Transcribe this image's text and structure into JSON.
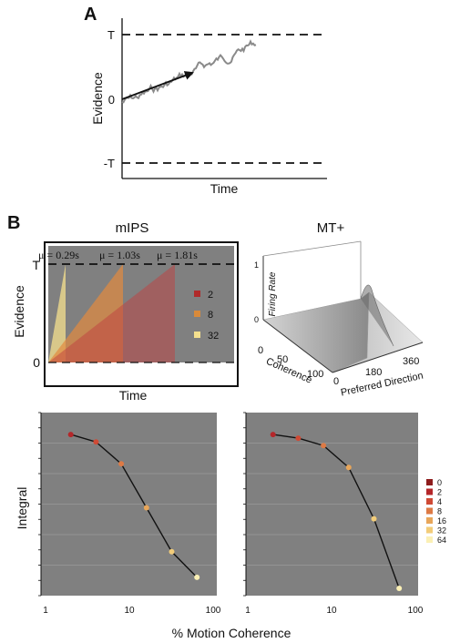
{
  "panelA": {
    "label": "A",
    "ylabel": "Evidence",
    "xlabel": "Time",
    "ticks": {
      "upper": "T",
      "zero": "0",
      "lower": "-T"
    },
    "walk_color": "#888888"
  },
  "panelB": {
    "label": "B",
    "mips": {
      "title": "mIPS",
      "ylabel": "Evidence",
      "xlabel": "Time",
      "ticks": {
        "upper": "T",
        "zero": "0"
      },
      "mu_labels": [
        "μ = 0.29s",
        "μ = 1.03s",
        "μ = 1.81s"
      ],
      "legend": [
        {
          "label": "2",
          "color": "#b02a2a"
        },
        {
          "label": "8",
          "color": "#d98a3a"
        },
        {
          "label": "32",
          "color": "#f5e08e"
        }
      ],
      "background": "#7f7f7f"
    },
    "mt": {
      "title": "MT+",
      "zlabel": "Firing Rate",
      "z_ticks": [
        "0",
        "1"
      ],
      "coherence_label": "Coherence",
      "coherence_ticks": [
        "0",
        "50",
        "100"
      ],
      "direction_label": "Preferred Direction",
      "direction_ticks": [
        "0",
        "180",
        "360"
      ]
    }
  },
  "bottom": {
    "ylabel": "Integral",
    "xlabel": "% Motion Coherence",
    "x_ticks": [
      "1",
      "10",
      "100"
    ],
    "background": "#808080",
    "legend": [
      {
        "label": "0",
        "color": "#8e1d1d"
      },
      {
        "label": "2",
        "color": "#b4272a"
      },
      {
        "label": "4",
        "color": "#cf4a35"
      },
      {
        "label": "8",
        "color": "#dd7a45"
      },
      {
        "label": "16",
        "color": "#e8a65a"
      },
      {
        "label": "32",
        "color": "#f2cc79"
      },
      {
        "label": "64",
        "color": "#fbf0b5"
      }
    ]
  },
  "chart_data": [
    {
      "type": "line",
      "title": "",
      "xlabel": "% Motion Coherence",
      "ylabel": "Integral",
      "log_x": true,
      "xlim": [
        1,
        100
      ],
      "series": [
        {
          "x": [
            2,
            4,
            8,
            16,
            32,
            64
          ],
          "y": [
            0.88,
            0.84,
            0.72,
            0.48,
            0.24,
            0.1
          ],
          "colors": [
            "#b4272a",
            "#cf4a35",
            "#dd7a45",
            "#e8a65a",
            "#f2cc79",
            "#fbf0b5"
          ]
        }
      ]
    },
    {
      "type": "line",
      "title": "",
      "xlabel": "% Motion Coherence",
      "ylabel": "",
      "log_x": true,
      "xlim": [
        1,
        100
      ],
      "series": [
        {
          "x": [
            2,
            4,
            8,
            16,
            32,
            64
          ],
          "y": [
            0.88,
            0.86,
            0.82,
            0.7,
            0.42,
            0.04
          ],
          "colors": [
            "#b4272a",
            "#cf4a35",
            "#dd7a45",
            "#e8a65a",
            "#f2cc79",
            "#fbf0b5"
          ]
        }
      ]
    }
  ]
}
